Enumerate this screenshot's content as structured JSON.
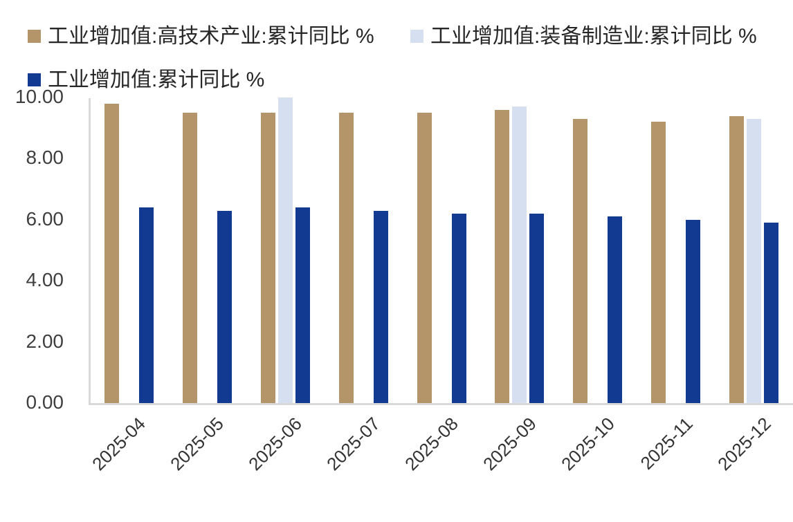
{
  "legend": {
    "items": [
      {
        "label": "工业增加值:高技术产业:累计同比 %",
        "color": "#B49469"
      },
      {
        "label": "工业增加值:装备制造业:累计同比 %",
        "color": "#D5DFEF"
      },
      {
        "label": "工业增加值:累计同比 %",
        "color": "#123A91"
      }
    ]
  },
  "chart_data": {
    "type": "bar",
    "categories": [
      "2025-04",
      "2025-05",
      "2025-06",
      "2025-07",
      "2025-08",
      "2025-09",
      "2025-10",
      "2025-11",
      "2025-12"
    ],
    "series": [
      {
        "name": "工业增加值:高技术产业:累计同比 %",
        "color": "#B49469",
        "values": [
          9.8,
          9.5,
          9.5,
          9.5,
          9.5,
          9.6,
          9.3,
          9.2,
          9.4
        ]
      },
      {
        "name": "工业增加值:装备制造业:累计同比 %",
        "color": "#D5DFEF",
        "values": [
          null,
          null,
          10.0,
          null,
          null,
          9.7,
          null,
          null,
          9.3
        ]
      },
      {
        "name": "工业增加值:累计同比 %",
        "color": "#123A91",
        "values": [
          6.4,
          6.3,
          6.4,
          6.3,
          6.2,
          6.2,
          6.1,
          6.0,
          5.9
        ]
      }
    ],
    "title": "",
    "xlabel": "",
    "ylabel": "",
    "ylim": [
      0,
      10
    ],
    "ytick_labels": [
      "10.00",
      "8.00",
      "6.00",
      "4.00",
      "2.00",
      "0.00"
    ],
    "ytick_values": [
      10,
      8,
      6,
      4,
      2,
      0
    ],
    "grid": false,
    "legend_position": "top-left",
    "axis_color": "#d9d9d9"
  }
}
